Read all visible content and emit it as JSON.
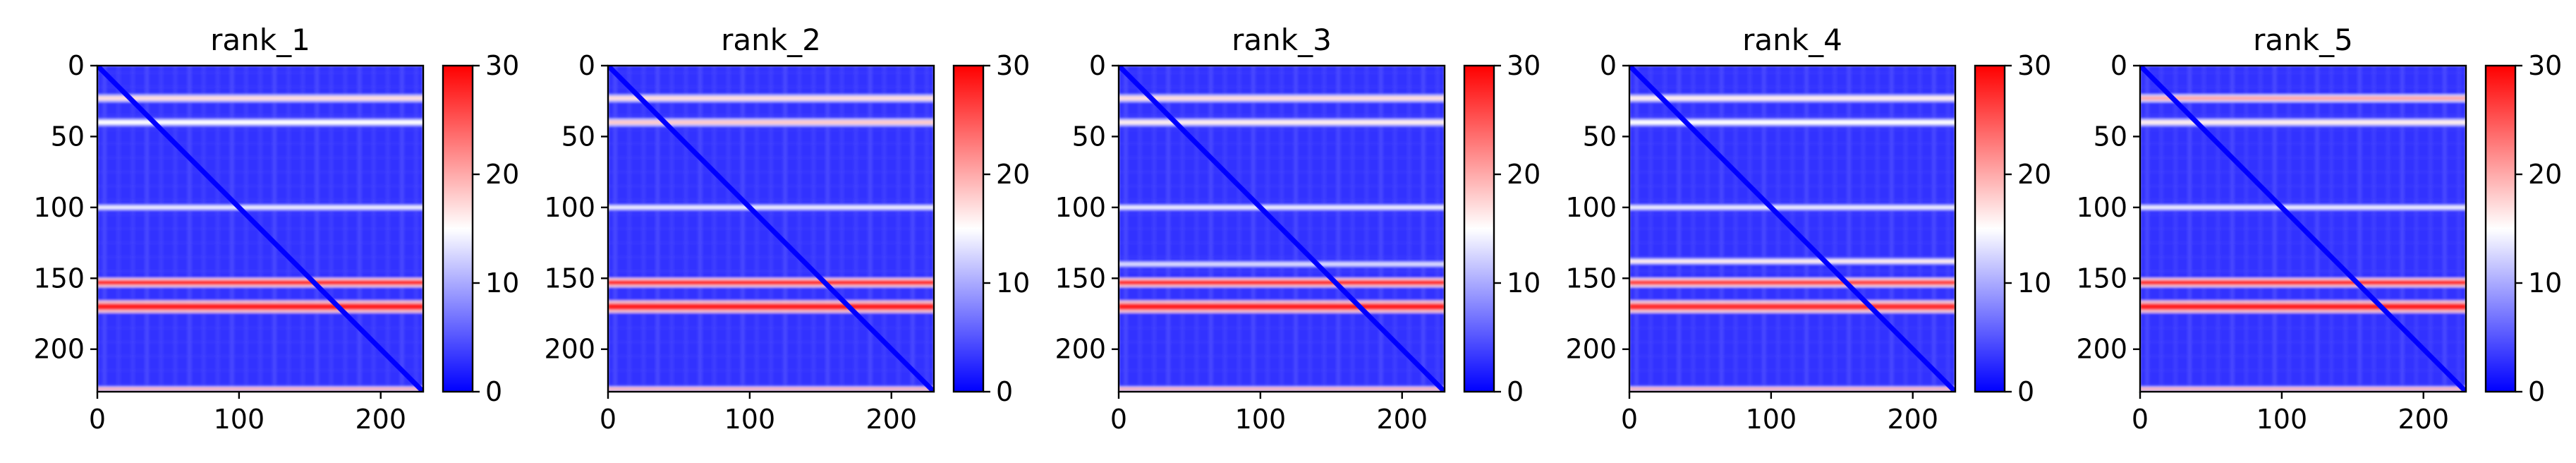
{
  "chart_data": [
    {
      "type": "heatmap",
      "title": "rank_1",
      "xlim": [
        0,
        230
      ],
      "ylim": [
        230,
        0
      ],
      "xticks": [
        0,
        100,
        200
      ],
      "yticks": [
        0,
        50,
        100,
        150,
        200
      ],
      "colorbar": {
        "min": 0,
        "max": 30,
        "ticks": [
          0,
          10,
          20,
          30
        ],
        "colormap": "bwr"
      },
      "bands": [
        {
          "y": 23,
          "width": 2.5,
          "value": 17
        },
        {
          "y": 40,
          "width": 2.5,
          "value": 15
        },
        {
          "y": 100,
          "width": 2,
          "value": 14
        },
        {
          "y": 153,
          "width": 3,
          "value": 27
        },
        {
          "y": 170,
          "width": 4,
          "value": 28
        },
        {
          "y": 228,
          "width": 1.5,
          "value": 20
        }
      ],
      "diagonal_value": 0,
      "background_value": 3
    },
    {
      "type": "heatmap",
      "title": "rank_2",
      "xlim": [
        0,
        230
      ],
      "ylim": [
        230,
        0
      ],
      "xticks": [
        0,
        100,
        200
      ],
      "yticks": [
        0,
        50,
        100,
        150,
        200
      ],
      "colorbar": {
        "min": 0,
        "max": 30,
        "ticks": [
          0,
          10,
          20,
          30
        ],
        "colormap": "bwr"
      },
      "bands": [
        {
          "y": 23,
          "width": 2.5,
          "value": 17
        },
        {
          "y": 40,
          "width": 2.5,
          "value": 18
        },
        {
          "y": 100,
          "width": 2,
          "value": 14
        },
        {
          "y": 153,
          "width": 3,
          "value": 27
        },
        {
          "y": 170,
          "width": 4,
          "value": 28
        },
        {
          "y": 228,
          "width": 1.5,
          "value": 20
        }
      ],
      "diagonal_value": 0,
      "background_value": 3
    },
    {
      "type": "heatmap",
      "title": "rank_3",
      "xlim": [
        0,
        230
      ],
      "ylim": [
        230,
        0
      ],
      "xticks": [
        0,
        100,
        200
      ],
      "yticks": [
        0,
        50,
        100,
        150,
        200
      ],
      "colorbar": {
        "min": 0,
        "max": 30,
        "ticks": [
          0,
          10,
          20,
          30
        ],
        "colormap": "bwr"
      },
      "bands": [
        {
          "y": 23,
          "width": 2.5,
          "value": 17
        },
        {
          "y": 40,
          "width": 2.5,
          "value": 16
        },
        {
          "y": 100,
          "width": 2,
          "value": 14
        },
        {
          "y": 140,
          "width": 2,
          "value": 13
        },
        {
          "y": 153,
          "width": 3,
          "value": 27
        },
        {
          "y": 170,
          "width": 4,
          "value": 28
        },
        {
          "y": 228,
          "width": 1.5,
          "value": 20
        }
      ],
      "diagonal_value": 0,
      "background_value": 3
    },
    {
      "type": "heatmap",
      "title": "rank_4",
      "xlim": [
        0,
        230
      ],
      "ylim": [
        230,
        0
      ],
      "xticks": [
        0,
        100,
        200
      ],
      "yticks": [
        0,
        50,
        100,
        150,
        200
      ],
      "colorbar": {
        "min": 0,
        "max": 30,
        "ticks": [
          0,
          10,
          20,
          30
        ],
        "colormap": "bwr"
      },
      "bands": [
        {
          "y": 23,
          "width": 2.5,
          "value": 16
        },
        {
          "y": 40,
          "width": 2.5,
          "value": 15
        },
        {
          "y": 100,
          "width": 2,
          "value": 14
        },
        {
          "y": 138,
          "width": 2,
          "value": 16
        },
        {
          "y": 153,
          "width": 3,
          "value": 26
        },
        {
          "y": 170,
          "width": 4,
          "value": 27
        },
        {
          "y": 228,
          "width": 1.5,
          "value": 20
        }
      ],
      "diagonal_value": 0,
      "background_value": 3
    },
    {
      "type": "heatmap",
      "title": "rank_5",
      "xlim": [
        0,
        230
      ],
      "ylim": [
        230,
        0
      ],
      "xticks": [
        0,
        100,
        200
      ],
      "yticks": [
        0,
        50,
        100,
        150,
        200
      ],
      "colorbar": {
        "min": 0,
        "max": 30,
        "ticks": [
          0,
          10,
          20,
          30
        ],
        "colormap": "bwr"
      },
      "bands": [
        {
          "y": 23,
          "width": 2.5,
          "value": 20
        },
        {
          "y": 40,
          "width": 2.5,
          "value": 16
        },
        {
          "y": 100,
          "width": 2,
          "value": 14
        },
        {
          "y": 153,
          "width": 3,
          "value": 27
        },
        {
          "y": 170,
          "width": 4,
          "value": 28
        },
        {
          "y": 228,
          "width": 1.5,
          "value": 20
        }
      ],
      "diagonal_value": 0,
      "background_value": 3
    }
  ]
}
